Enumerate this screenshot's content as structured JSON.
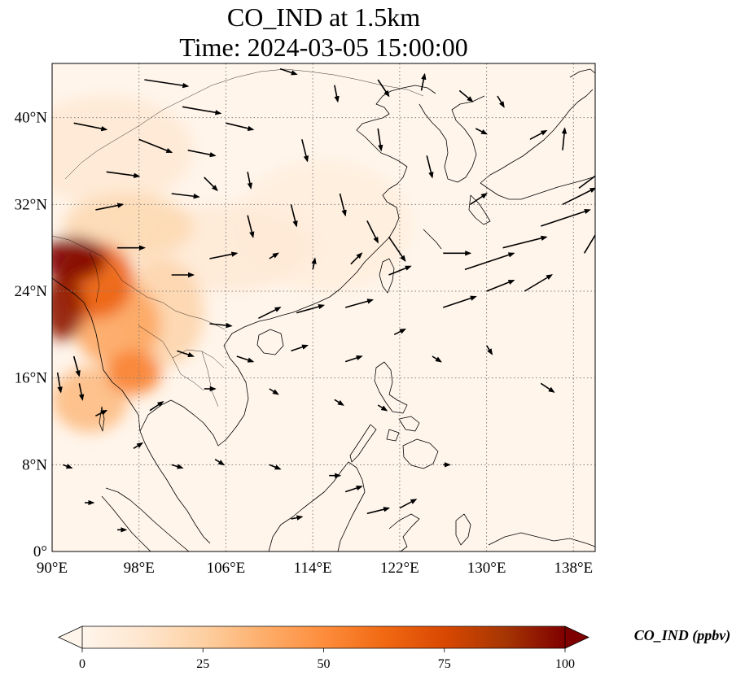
{
  "title": {
    "line1": "CO_IND at 1.5km",
    "line2": "Time: 2024-03-05 15:00:00"
  },
  "map": {
    "lon_range": [
      90,
      140
    ],
    "lat_range": [
      0,
      45
    ],
    "x_ticks": [
      {
        "value": 90,
        "label": "90°E"
      },
      {
        "value": 98,
        "label": "98°E"
      },
      {
        "value": 106,
        "label": "106°E"
      },
      {
        "value": 114,
        "label": "114°E"
      },
      {
        "value": 122,
        "label": "122°E"
      },
      {
        "value": 130,
        "label": "130°E"
      },
      {
        "value": 138,
        "label": "138°E"
      }
    ],
    "y_ticks": [
      {
        "value": 0,
        "label": "0°"
      },
      {
        "value": 8,
        "label": "8°N"
      },
      {
        "value": 16,
        "label": "16°N"
      },
      {
        "value": 24,
        "label": "24°N"
      },
      {
        "value": 32,
        "label": "32°N"
      },
      {
        "value": 40,
        "label": "40°N"
      }
    ],
    "gridlines": true,
    "field": "CO_IND"
  },
  "concentration_blobs": [
    {
      "lon": 92.0,
      "lat": 27.0,
      "rlon": 3.0,
      "rlat": 2.0,
      "value": 100
    },
    {
      "lon": 91.0,
      "lat": 22.5,
      "rlon": 2.0,
      "rlat": 3.0,
      "value": 95
    },
    {
      "lon": 94.0,
      "lat": 25.0,
      "rlon": 3.5,
      "rlat": 3.5,
      "value": 65
    },
    {
      "lon": 96.0,
      "lat": 21.0,
      "rlon": 4.0,
      "rlat": 4.0,
      "value": 40
    },
    {
      "lon": 97.5,
      "lat": 16.5,
      "rlon": 2.5,
      "rlat": 2.0,
      "value": 55
    },
    {
      "lon": 93.5,
      "lat": 14.0,
      "rlon": 3.5,
      "rlat": 3.0,
      "value": 32
    },
    {
      "lon": 100.0,
      "lat": 22.0,
      "rlon": 4.0,
      "rlat": 5.0,
      "value": 22
    },
    {
      "lon": 97.0,
      "lat": 30.0,
      "rlon": 6.0,
      "rlat": 3.0,
      "value": 20
    },
    {
      "lon": 95.0,
      "lat": 37.0,
      "rlon": 8.0,
      "rlat": 5.0,
      "value": 10
    },
    {
      "lon": 106.0,
      "lat": 28.0,
      "rlon": 8.0,
      "rlat": 4.0,
      "value": 9
    },
    {
      "lon": 115.0,
      "lat": 30.0,
      "rlon": 8.0,
      "rlat": 6.0,
      "value": 6
    }
  ],
  "wind_vectors": [
    [
      98.5,
      43.5,
      4.0,
      -0.6
    ],
    [
      102.0,
      41.0,
      3.5,
      -0.6
    ],
    [
      106.0,
      39.5,
      2.5,
      -0.6
    ],
    [
      92.0,
      39.5,
      3.0,
      -0.6
    ],
    [
      98.0,
      38.0,
      3.0,
      -1.2
    ],
    [
      102.5,
      37.0,
      2.5,
      -0.5
    ],
    [
      95.0,
      35.0,
      3.0,
      -0.4
    ],
    [
      101.0,
      33.0,
      2.5,
      -0.3
    ],
    [
      94.0,
      31.5,
      2.5,
      0.5
    ],
    [
      96.0,
      28.0,
      2.5,
      0.0
    ],
    [
      104.5,
      27.0,
      2.5,
      0.5
    ],
    [
      101.0,
      25.5,
      2.0,
      0.0
    ],
    [
      108.0,
      31.0,
      0.5,
      -2.0
    ],
    [
      112.0,
      32.0,
      0.5,
      -2.0
    ],
    [
      116.5,
      33.0,
      0.5,
      -2.0
    ],
    [
      119.0,
      30.5,
      1.0,
      -2.0
    ],
    [
      121.0,
      29.0,
      1.5,
      -2.2
    ],
    [
      113.0,
      38.0,
      0.5,
      -2.0
    ],
    [
      120.0,
      39.0,
      0.3,
      -2.0
    ],
    [
      124.5,
      36.5,
      0.5,
      -2.0
    ],
    [
      126.0,
      27.5,
      2.5,
      0.0
    ],
    [
      128.0,
      26.0,
      4.5,
      1.5
    ],
    [
      131.5,
      28.0,
      4.0,
      1.0
    ],
    [
      135.0,
      30.0,
      4.5,
      1.5
    ],
    [
      137.0,
      32.0,
      3.0,
      1.5
    ],
    [
      138.5,
      33.5,
      2.0,
      1.5
    ],
    [
      139.0,
      27.5,
      1.5,
      2.5
    ],
    [
      126.0,
      22.5,
      3.0,
      1.0
    ],
    [
      130.0,
      24.0,
      2.5,
      1.0
    ],
    [
      133.5,
      24.0,
      2.5,
      1.5
    ],
    [
      121.0,
      25.5,
      2.0,
      0.8
    ],
    [
      117.0,
      22.5,
      2.5,
      0.7
    ],
    [
      112.5,
      22.0,
      2.5,
      0.7
    ],
    [
      109.0,
      21.5,
      2.0,
      1.0
    ],
    [
      104.5,
      21.0,
      2.0,
      -0.2
    ],
    [
      101.5,
      18.5,
      1.5,
      -0.5
    ],
    [
      107.0,
      18.0,
      1.5,
      -0.5
    ],
    [
      112.0,
      18.5,
      1.5,
      0.5
    ],
    [
      117.0,
      17.5,
      1.5,
      0.5
    ],
    [
      121.5,
      20.0,
      1.0,
      0.5
    ],
    [
      135.0,
      15.5,
      1.2,
      -0.8
    ],
    [
      130.0,
      19.0,
      0.5,
      -0.8
    ],
    [
      125.0,
      18.0,
      0.8,
      -0.5
    ],
    [
      120.0,
      13.5,
      0.8,
      -0.5
    ],
    [
      116.0,
      14.0,
      0.8,
      -0.5
    ],
    [
      110.0,
      15.0,
      0.8,
      -0.5
    ],
    [
      104.0,
      15.0,
      1.0,
      0.0
    ],
    [
      99.0,
      13.0,
      1.2,
      0.8
    ],
    [
      94.0,
      12.5,
      1.0,
      0.5
    ],
    [
      97.5,
      9.5,
      0.8,
      0.5
    ],
    [
      101.0,
      8.0,
      1.0,
      -0.3
    ],
    [
      105.0,
      8.5,
      0.8,
      -0.5
    ],
    [
      110.0,
      8.0,
      1.0,
      -0.4
    ],
    [
      115.5,
      7.0,
      1.0,
      0.0
    ],
    [
      117.0,
      5.5,
      1.5,
      0.5
    ],
    [
      119.0,
      3.5,
      2.0,
      0.5
    ],
    [
      122.0,
      4.0,
      1.5,
      0.8
    ],
    [
      91.0,
      8.0,
      0.8,
      -0.3
    ],
    [
      93.0,
      4.5,
      0.8,
      0.0
    ],
    [
      96.0,
      2.0,
      0.8,
      0.0
    ],
    [
      112.0,
      3.0,
      1.0,
      0.2
    ],
    [
      126.0,
      8.0,
      0.6,
      0.0
    ],
    [
      92.0,
      18.0,
      0.5,
      -1.8
    ],
    [
      90.5,
      16.5,
      0.3,
      -1.8
    ],
    [
      92.5,
      15.5,
      0.3,
      -1.5
    ],
    [
      137.0,
      37.0,
      0.2,
      2.0
    ],
    [
      129.0,
      39.0,
      1.0,
      -0.5
    ],
    [
      134.0,
      38.0,
      1.5,
      0.8
    ],
    [
      128.5,
      32.0,
      1.5,
      1.0
    ],
    [
      124.0,
      42.5,
      0.3,
      1.5
    ],
    [
      127.5,
      42.5,
      1.2,
      -1.0
    ],
    [
      131.0,
      42.0,
      0.6,
      -1.0
    ],
    [
      111.0,
      44.5,
      1.5,
      -0.5
    ],
    [
      116.0,
      43.0,
      0.3,
      -1.5
    ],
    [
      120.0,
      43.5,
      1.0,
      -1.5
    ],
    [
      108.0,
      35.0,
      0.3,
      -1.5
    ],
    [
      104.0,
      34.5,
      1.2,
      -1.2
    ],
    [
      110.0,
      27.0,
      0.8,
      0.5
    ],
    [
      114.0,
      26.0,
      0.2,
      1.0
    ],
    [
      117.5,
      26.5,
      1.0,
      1.0
    ]
  ],
  "colorbar": {
    "min": 0,
    "max": 100,
    "ticks": [
      {
        "value": 0,
        "label": "0"
      },
      {
        "value": 25,
        "label": "25"
      },
      {
        "value": 50,
        "label": "50"
      },
      {
        "value": 75,
        "label": "75"
      },
      {
        "value": 100,
        "label": "100"
      }
    ],
    "label": "CO_IND (ppbv)",
    "extend": "both",
    "colors": [
      "#fff5eb",
      "#fee6ce",
      "#fdd0a2",
      "#fdae6b",
      "#fd8d3c",
      "#f16913",
      "#d94801",
      "#a63603",
      "#7f0000"
    ]
  },
  "colors": {
    "background": "#fff5eb",
    "gridline": "#808080",
    "coastline": "#000000",
    "vector": "#000000"
  }
}
